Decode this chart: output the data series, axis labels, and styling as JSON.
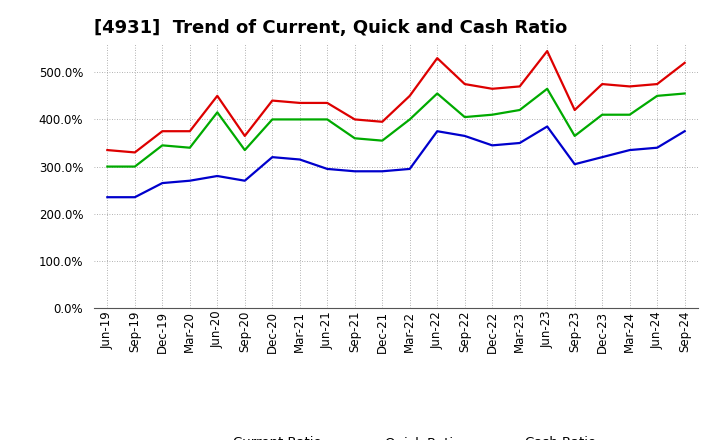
{
  "title": "[4931]  Trend of Current, Quick and Cash Ratio",
  "x_labels": [
    "Jun-19",
    "Sep-19",
    "Dec-19",
    "Mar-20",
    "Jun-20",
    "Sep-20",
    "Dec-20",
    "Mar-21",
    "Jun-21",
    "Sep-21",
    "Dec-21",
    "Mar-22",
    "Jun-22",
    "Sep-22",
    "Dec-22",
    "Mar-23",
    "Jun-23",
    "Sep-23",
    "Dec-23",
    "Mar-24",
    "Jun-24",
    "Sep-24"
  ],
  "current_ratio": [
    335,
    330,
    375,
    375,
    450,
    365,
    440,
    435,
    435,
    400,
    395,
    450,
    530,
    475,
    465,
    470,
    545,
    420,
    475,
    470,
    475,
    520
  ],
  "quick_ratio": [
    300,
    300,
    345,
    340,
    415,
    335,
    400,
    400,
    400,
    360,
    355,
    400,
    455,
    405,
    410,
    420,
    465,
    365,
    410,
    410,
    450,
    455
  ],
  "cash_ratio": [
    235,
    235,
    265,
    270,
    280,
    270,
    320,
    315,
    295,
    290,
    290,
    295,
    375,
    365,
    345,
    350,
    385,
    305,
    320,
    335,
    340,
    375
  ],
  "ylim": [
    0,
    560
  ],
  "yticks": [
    0,
    100,
    200,
    300,
    400,
    500
  ],
  "current_color": "#dd0000",
  "quick_color": "#00aa00",
  "cash_color": "#0000cc",
  "line_width": 1.6,
  "legend_labels": [
    "Current Ratio",
    "Quick Ratio",
    "Cash Ratio"
  ],
  "grid_color": "#999999",
  "bg_color": "#ffffff",
  "title_fontsize": 13,
  "tick_fontsize": 8.5
}
